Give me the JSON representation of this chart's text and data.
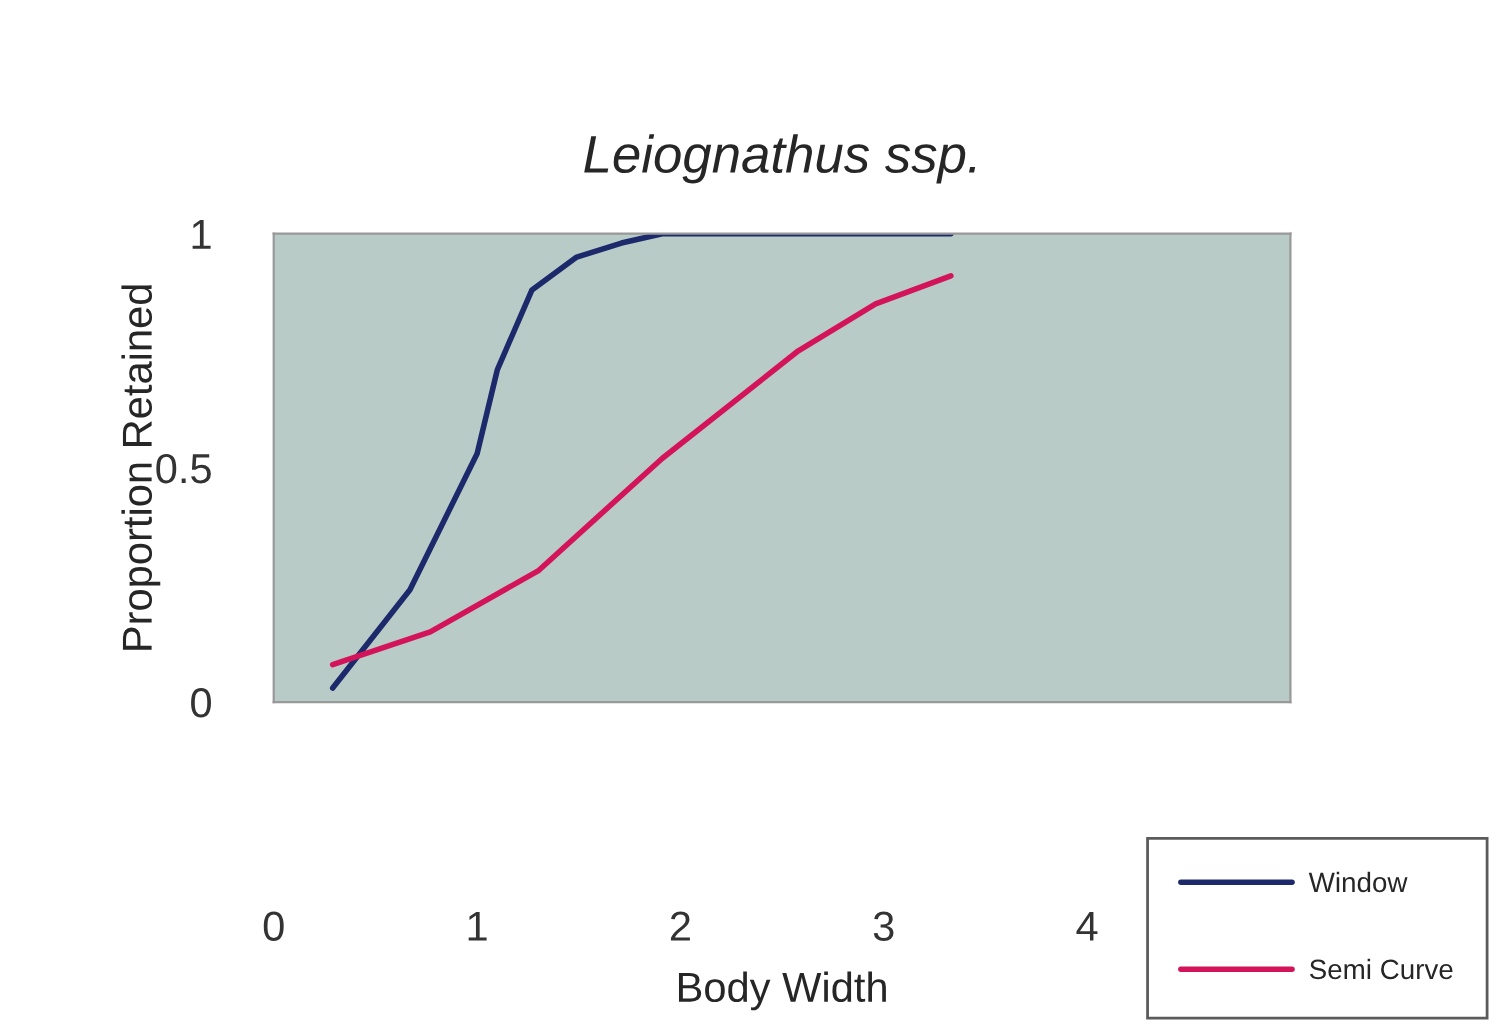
{
  "chart_data": {
    "type": "line",
    "title": "Leiognathus ssp.",
    "xlabel": "Body Width",
    "ylabel": "Proportion Retained",
    "xlim": [
      0,
      5
    ],
    "xticks": [
      0,
      1,
      2,
      3,
      4
    ],
    "ylim": [
      0,
      1
    ],
    "yticks": [
      0,
      0.5,
      1
    ],
    "grid": false,
    "legend": "bottom right",
    "series": [
      {
        "name": "Window",
        "color": "#1c2a6b",
        "x": [
          0.29,
          0.67,
          1.0,
          1.1,
          1.27,
          1.49,
          1.71,
          1.91,
          3.33
        ],
        "values": [
          0.03,
          0.24,
          0.53,
          0.71,
          0.88,
          0.95,
          0.98,
          1.0,
          1.0
        ]
      },
      {
        "name": "Semi Curve",
        "color": "#d4145a",
        "x": [
          0.29,
          0.77,
          1.3,
          1.91,
          2.58,
          2.96,
          3.33
        ],
        "values": [
          0.08,
          0.15,
          0.28,
          0.52,
          0.75,
          0.85,
          0.91
        ]
      }
    ]
  }
}
